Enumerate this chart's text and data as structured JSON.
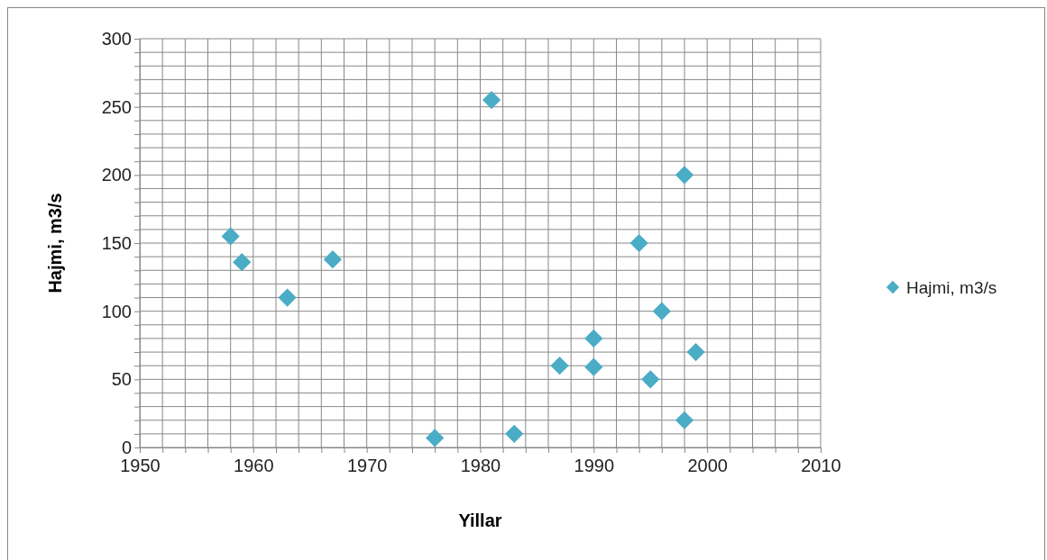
{
  "chart_data": {
    "type": "scatter",
    "xlabel": "Yillar",
    "ylabel": "Hajmi, m3/s",
    "series": [
      {
        "name": "Hajmi, m3/s",
        "color": "#4bacc6",
        "x": [
          1958,
          1959,
          1963,
          1967,
          1976,
          1981,
          1983,
          1987,
          1990,
          1990,
          1994,
          1995,
          1996,
          1998,
          1998,
          1999
        ],
        "values": [
          155,
          136,
          110,
          138,
          7,
          255,
          10,
          60,
          59,
          80,
          150,
          50,
          100,
          200,
          20,
          70
        ]
      }
    ],
    "xlim": [
      1950,
      2010
    ],
    "xticks": [
      1950,
      {
        "value": 1952,
        "label": null
      },
      {
        "value": 1954,
        "label": null
      },
      {
        "value": 1956,
        "label": null
      },
      {
        "value": 1958,
        "label": null
      },
      1960,
      {
        "value": 1962,
        "label": null
      },
      {
        "value": 1964,
        "label": null
      },
      {
        "value": 1966,
        "label": null
      },
      {
        "value": 1968,
        "label": null
      },
      1970,
      {
        "value": 1972,
        "label": null
      },
      {
        "value": 1974,
        "label": null
      },
      {
        "value": 1976,
        "label": null
      },
      {
        "value": 1978,
        "label": null
      },
      1980,
      {
        "value": 1982,
        "label": null
      },
      {
        "value": 1984,
        "label": null
      },
      {
        "value": 1986,
        "label": null
      },
      {
        "value": 1988,
        "label": null
      },
      1990,
      {
        "value": 1992,
        "label": null
      },
      {
        "value": 1994,
        "label": null
      },
      {
        "value": 1996,
        "label": null
      },
      {
        "value": 1998,
        "label": null
      },
      2000,
      {
        "value": 2002,
        "label": null
      },
      {
        "value": 2004,
        "label": null
      },
      {
        "value": 2006,
        "label": null
      },
      {
        "value": 2008,
        "label": null
      },
      2010
    ],
    "ylim": [
      0,
      300
    ],
    "yticks": [
      0,
      {
        "value": 10,
        "label": null
      },
      {
        "value": 20,
        "label": null
      },
      {
        "value": 30,
        "label": null
      },
      {
        "value": 40,
        "label": null
      },
      50,
      {
        "value": 60,
        "label": null
      },
      {
        "value": 70,
        "label": null
      },
      {
        "value": 80,
        "label": null
      },
      {
        "value": 90,
        "label": null
      },
      100,
      {
        "value": 110,
        "label": null
      },
      {
        "value": 120,
        "label": null
      },
      {
        "value": 130,
        "label": null
      },
      {
        "value": 140,
        "label": null
      },
      150,
      {
        "value": 160,
        "label": null
      },
      {
        "value": 170,
        "label": null
      },
      {
        "value": 180,
        "label": null
      },
      {
        "value": 190,
        "label": null
      },
      200,
      {
        "value": 210,
        "label": null
      },
      {
        "value": 220,
        "label": null
      },
      {
        "value": 230,
        "label": null
      },
      {
        "value": 240,
        "label": null
      },
      250,
      {
        "value": 260,
        "label": null
      },
      {
        "value": 270,
        "label": null
      },
      {
        "value": 280,
        "label": null
      },
      {
        "value": 290,
        "label": null
      },
      300
    ],
    "grid": true,
    "legend": "right",
    "marker": "diamond"
  }
}
